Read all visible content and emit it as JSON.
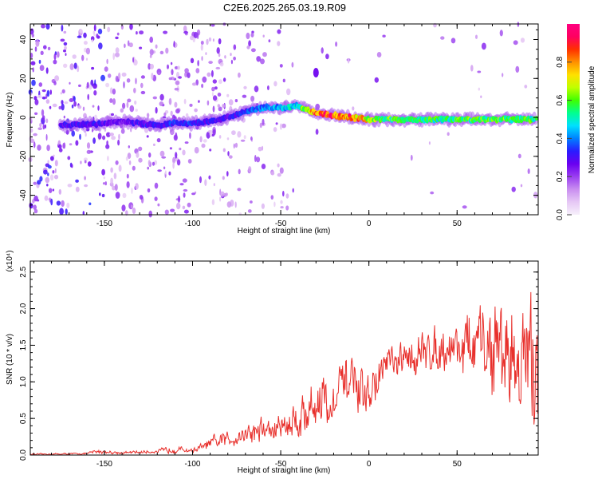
{
  "title": "C2E6.2025.265.03.19.R09",
  "chart_data": [
    {
      "type": "heatmap",
      "xlabel": "Height of straight line (km)",
      "ylabel": "Frequency (Hz)",
      "xlim": [
        -192,
        96
      ],
      "ylim": [
        -50,
        48
      ],
      "x_ticks": [
        -150,
        -100,
        -50,
        0,
        50
      ],
      "y_ticks": [
        -40,
        -20,
        0,
        20,
        40
      ],
      "colorbar": {
        "label": "Normalized spectral amplitude",
        "range": [
          0,
          1
        ],
        "ticks": [
          "0.0",
          "0.2",
          "0.4",
          "0.6",
          "0.8"
        ],
        "tick_values": [
          0,
          0.2,
          0.4,
          0.6,
          0.8
        ],
        "colors": [
          "#f6f0fb",
          "#e6c8f5",
          "#c98ef0",
          "#9a3ff0",
          "#6a00f0",
          "#2a1cff",
          "#0080ff",
          "#00e0ff",
          "#00ff90",
          "#40ff00",
          "#c0ff00",
          "#ffe000",
          "#ff9000",
          "#ff3000",
          "#ff0060",
          "#ff0080"
        ]
      },
      "ridge": {
        "x": [
          -170,
          -150,
          -140,
          -130,
          -120,
          -110,
          -100,
          -90,
          -80,
          -70,
          -60,
          -50,
          -40,
          -35,
          -30,
          -20,
          -10,
          0,
          10,
          20,
          40,
          60,
          80,
          95
        ],
        "freq": [
          -4,
          -3,
          -2,
          -3,
          -4,
          -3,
          -3,
          -2,
          0,
          3,
          5,
          5,
          6,
          4,
          2,
          1,
          0,
          -1,
          -1,
          -1,
          -1,
          -1,
          -1,
          -1
        ],
        "amplitude": [
          0.3,
          0.3,
          0.25,
          0.3,
          0.3,
          0.35,
          0.35,
          0.3,
          0.3,
          0.35,
          0.4,
          0.45,
          0.5,
          0.7,
          0.9,
          0.9,
          0.85,
          0.7,
          0.6,
          0.55,
          0.55,
          0.6,
          0.6,
          0.55
        ]
      },
      "isolated_blob": {
        "x": -30,
        "freq": 23,
        "amplitude": 0.25
      }
    },
    {
      "type": "line",
      "xlabel": "Height of straight line (km)",
      "ylabel": "SNR (10 * v/v)",
      "y_multiplier": "(x10⁴)",
      "xlim": [
        -192,
        96
      ],
      "ylim": [
        0,
        2.65
      ],
      "x_ticks": [
        -150,
        -100,
        -50,
        0,
        50
      ],
      "y_ticks": [
        "0.0",
        "0.5",
        "1.0",
        "1.5",
        "2.0",
        "2.5"
      ],
      "y_tick_values": [
        0,
        0.5,
        1.0,
        1.5,
        2.0,
        2.5
      ],
      "color": "#e8302c",
      "series": {
        "name": "SNR",
        "x": [
          -192,
          -160,
          -155,
          -140,
          -120,
          -112,
          -100,
          -90,
          -80,
          -70,
          -60,
          -55,
          -50,
          -45,
          -40,
          -35,
          -30,
          -25,
          -23,
          -20,
          -15,
          -10,
          -5,
          0,
          5,
          10,
          15,
          20,
          30,
          40,
          50,
          55,
          60,
          65,
          70,
          75,
          80,
          85,
          90,
          93,
          95
        ],
        "mean": [
          0.01,
          0.02,
          0.05,
          0.03,
          0.05,
          0.08,
          0.06,
          0.15,
          0.22,
          0.3,
          0.35,
          0.32,
          0.4,
          0.45,
          0.5,
          0.6,
          0.7,
          0.85,
          0.5,
          0.75,
          0.95,
          1.0,
          0.8,
          0.85,
          1.0,
          1.3,
          1.2,
          1.3,
          1.4,
          1.45,
          1.5,
          1.5,
          1.45,
          1.5,
          1.4,
          1.45,
          1.35,
          1.3,
          1.3,
          1.2,
          1.2
        ],
        "spread": [
          0.01,
          0.015,
          0.04,
          0.02,
          0.03,
          0.06,
          0.04,
          0.1,
          0.15,
          0.18,
          0.22,
          0.2,
          0.25,
          0.3,
          0.35,
          0.4,
          0.45,
          0.6,
          0.2,
          0.3,
          0.4,
          0.45,
          0.35,
          0.3,
          0.35,
          0.3,
          0.25,
          0.3,
          0.35,
          0.35,
          0.45,
          0.55,
          0.6,
          0.7,
          0.8,
          0.85,
          0.9,
          0.9,
          0.95,
          1.0,
          1.0
        ]
      }
    }
  ]
}
